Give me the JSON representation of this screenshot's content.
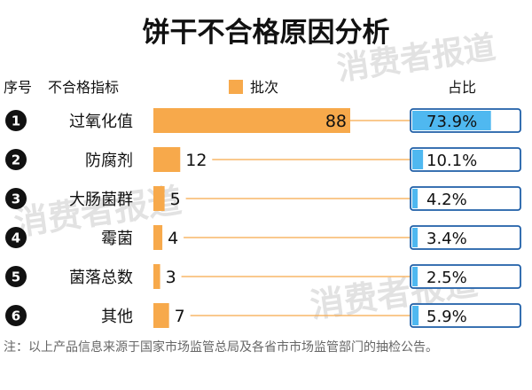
{
  "chart_data": {
    "type": "bar",
    "title": "饼干不合格原因分析",
    "watermark_text": "消费者报道",
    "headers": {
      "index": "序号",
      "indicator": "不合格指标",
      "legend": "批次",
      "ratio": "占比"
    },
    "categories": [
      "过氧化值",
      "防腐剂",
      "大肠菌群",
      "霉菌",
      "菌落总数",
      "其他"
    ],
    "indices": [
      "1",
      "2",
      "3",
      "4",
      "5",
      "6"
    ],
    "series": [
      {
        "name": "批次",
        "values": [
          88,
          12,
          5,
          4,
          3,
          7
        ]
      }
    ],
    "percentages": [
      73.9,
      10.1,
      4.2,
      3.4,
      2.5,
      5.9
    ],
    "percentage_labels": [
      "73.9%",
      "10.1%",
      "4.2%",
      "3.4%",
      "2.5%",
      "5.9%"
    ],
    "bar_max": 88,
    "note": "注：以上产品信息来源于国家市场监管总局及各省市市场监管部门的抽检公告。"
  },
  "colors": {
    "bar": "#F7A94B",
    "ratio_fill": "#4FB8F0",
    "ratio_border": "#1f5fa8",
    "badge": "#111111",
    "badge_text": "#ffffff",
    "leader": "#F7A94B",
    "note": "#666666",
    "watermark": "#d9d9d9"
  }
}
